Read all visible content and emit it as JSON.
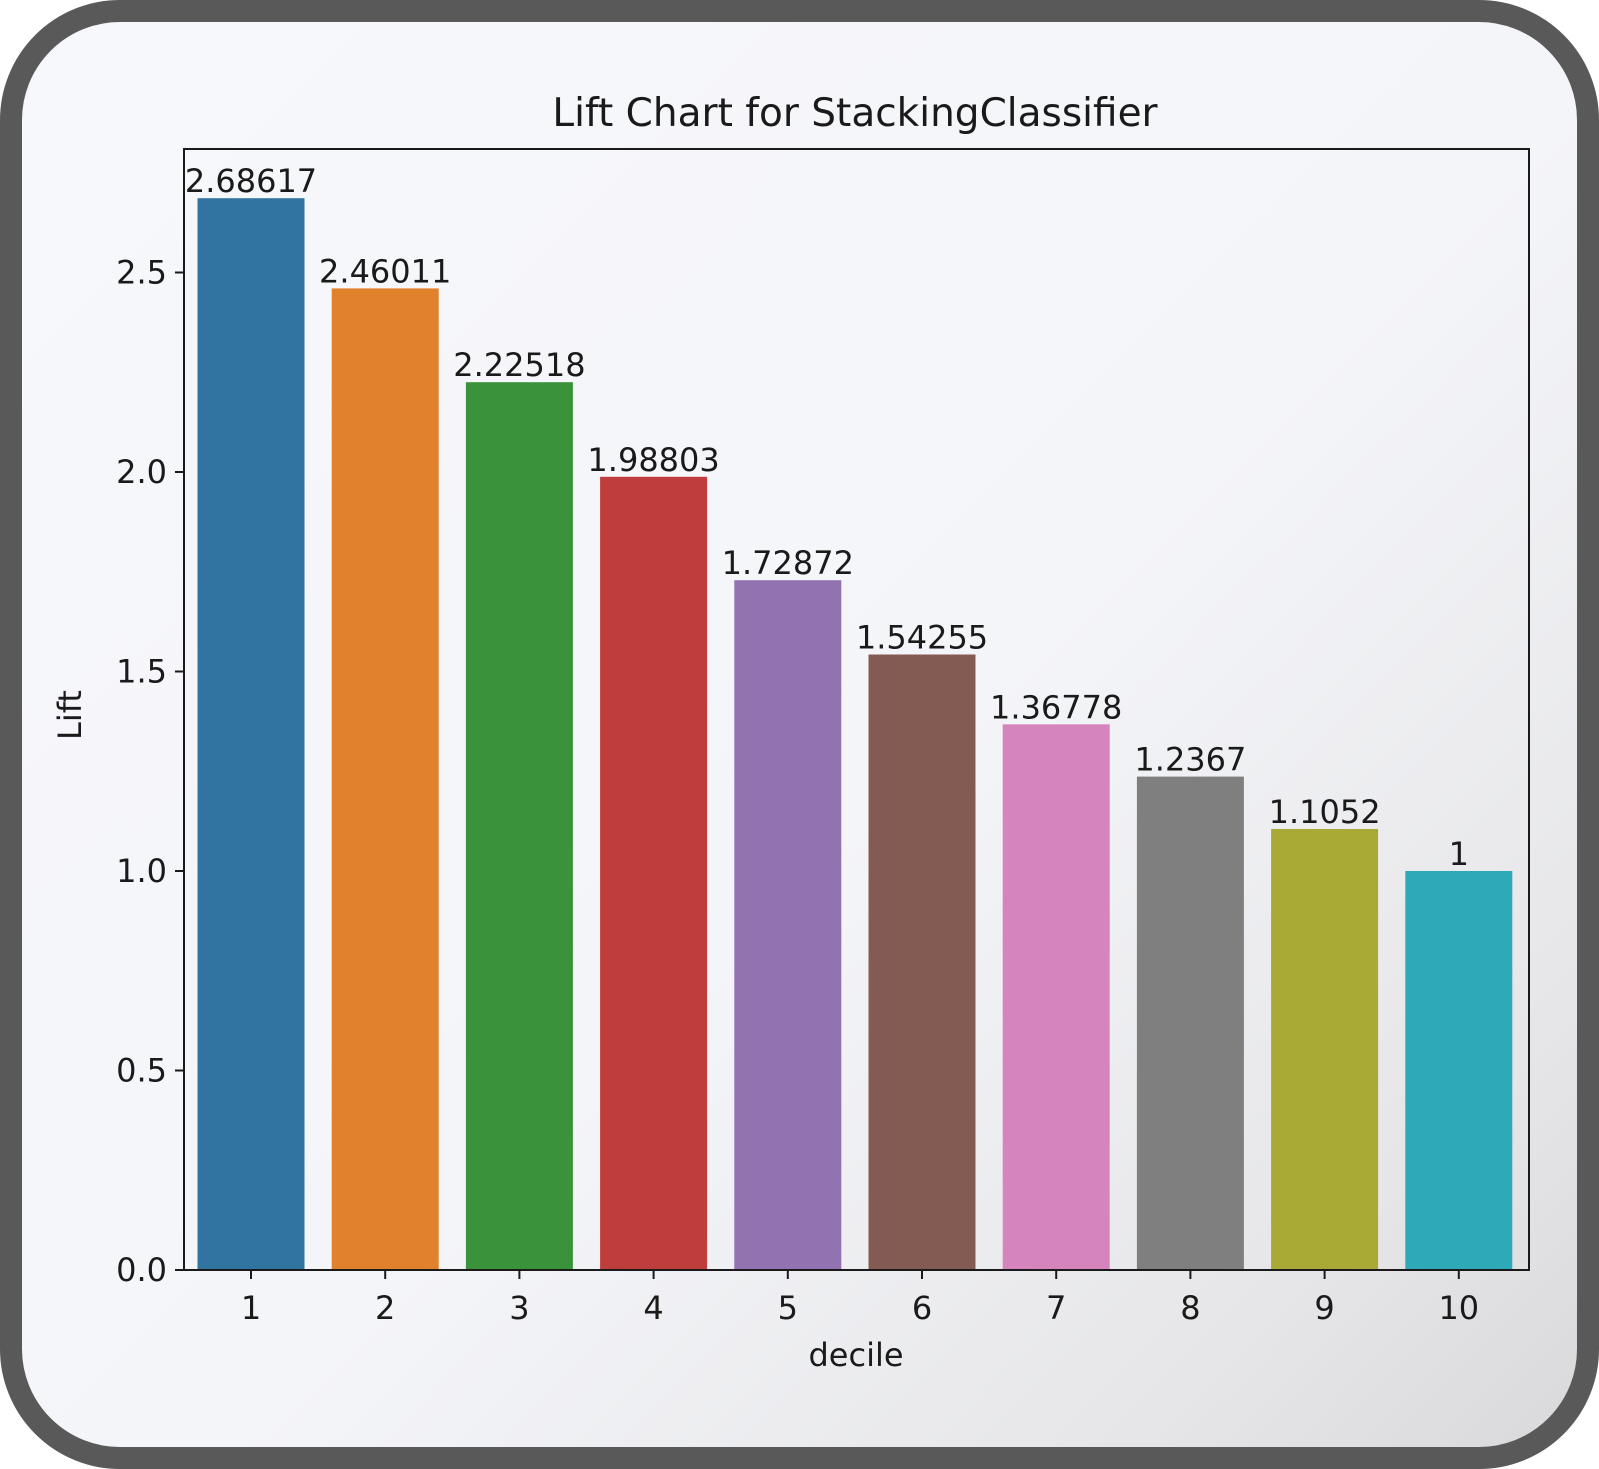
{
  "chart_data": {
    "type": "bar",
    "title": "Lift Chart for StackingClassifier",
    "xlabel": "decile",
    "ylabel": "Lift",
    "categories": [
      "1",
      "2",
      "3",
      "4",
      "5",
      "6",
      "7",
      "8",
      "9",
      "10"
    ],
    "values": [
      2.68617,
      2.46011,
      2.22518,
      1.98803,
      1.72872,
      1.54255,
      1.36778,
      1.2367,
      1.1052,
      1
    ],
    "value_labels": [
      "2.68617",
      "2.46011",
      "2.22518",
      "1.98803",
      "1.72872",
      "1.54255",
      "1.36778",
      "1.2367",
      "1.1052",
      "1"
    ],
    "ylim": [
      0,
      2.81
    ],
    "yticks": [
      "0.0",
      "0.5",
      "1.0",
      "1.5",
      "2.0",
      "2.5"
    ],
    "grid": false,
    "colors": [
      "#3274a1",
      "#e1812c",
      "#3a923a",
      "#c03d3e",
      "#9372b2",
      "#845b53",
      "#d684bd",
      "#7f7f7f",
      "#a9aa35",
      "#2ea9b8"
    ]
  }
}
